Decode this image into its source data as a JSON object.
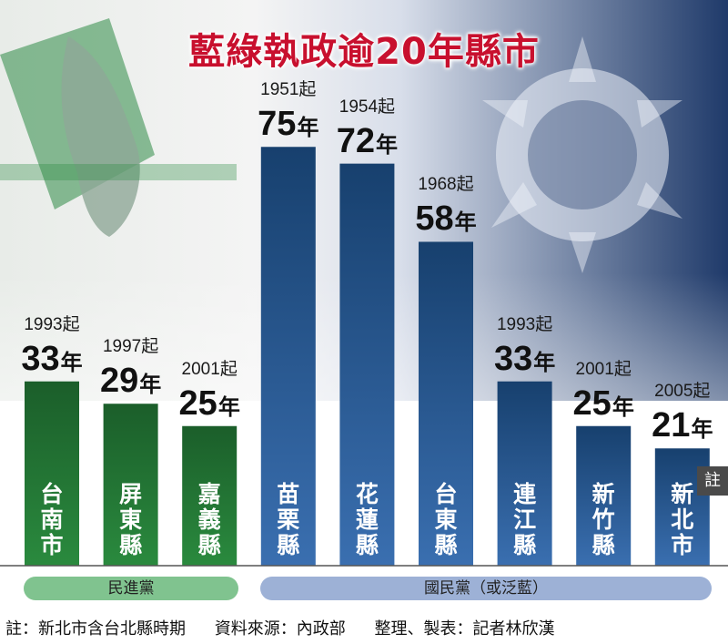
{
  "title": "藍綠執政逾20年縣市",
  "year_unit": "年",
  "note_tag": "註",
  "parties": {
    "dpp": "民進黨",
    "kmt": "國民黨（或泛藍）"
  },
  "footer": {
    "note": "註：新北市含台北縣時期",
    "source": "資料來源：內政部",
    "credit": "整理、製表：記者林欣漢"
  },
  "colors": {
    "dpp": "#1e6a2e",
    "kmt": "#1d4a79",
    "title": "#c8102e"
  },
  "chart_data": {
    "type": "bar",
    "title": "藍綠執政逾20年縣市",
    "ylim": [
      0,
      80
    ],
    "grid": false,
    "legend": "bottom",
    "categories": [
      "台南市",
      "屏東縣",
      "嘉義縣",
      "苗栗縣",
      "花蓮縣",
      "台東縣",
      "連江縣",
      "新竹縣",
      "新北市"
    ],
    "values": [
      33,
      29,
      25,
      75,
      72,
      58,
      33,
      25,
      21
    ],
    "start_labels": [
      "1993起",
      "1997起",
      "2001起",
      "1951起",
      "1954起",
      "1968起",
      "1993起",
      "2001起",
      "2005起"
    ],
    "party": [
      "民進黨",
      "民進黨",
      "民進黨",
      "國民黨（或泛藍）",
      "國民黨（或泛藍）",
      "國民黨（或泛藍）",
      "國民黨（或泛藍）",
      "國民黨（或泛藍）",
      "國民黨（或泛藍）"
    ]
  }
}
